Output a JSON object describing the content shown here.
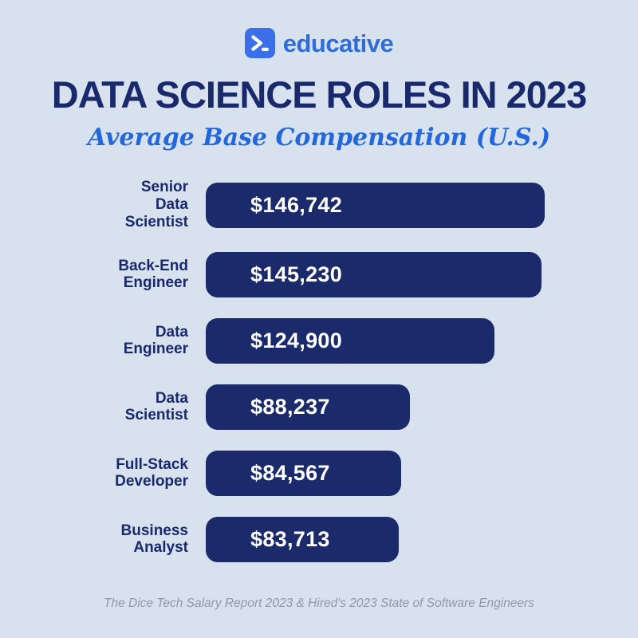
{
  "logo": {
    "icon": "terminal-prompt",
    "wordmark": "educative"
  },
  "header": {
    "title": "DATA SCIENCE ROLES IN 2023",
    "subtitle": "Average Base Compensation (U.S.)"
  },
  "footer": {
    "source": "The Dice Tech Salary Report 2023 & Hired's 2023 State of Software Engineers"
  },
  "colors": {
    "background": "#d8e2ee",
    "bar": "#1b2a6b",
    "title": "#19296b",
    "subtitle": "#2367dd",
    "logo_blue": "#2d6cd9",
    "footer_gray": "#8e99aa"
  },
  "chart_data": {
    "type": "bar",
    "orientation": "horizontal",
    "title": "DATA SCIENCE ROLES IN 2023",
    "subtitle": "Average Base Compensation (U.S.)",
    "source": "The Dice Tech Salary Report 2023 & Hired's 2023 State of Software Engineers",
    "categories": [
      "Senior Data Scientist",
      "Back-End Engineer",
      "Data Engineer",
      "Data Scientist",
      "Full-Stack Developer",
      "Business Analyst"
    ],
    "category_display": [
      "Senior\nData\nScientist",
      "Back-End\nEngineer",
      "Data\nEngineer",
      "Data\nScientist",
      "Full-Stack\nDeveloper",
      "Business\nAnalyst"
    ],
    "values": [
      146742,
      145230,
      124900,
      88237,
      84567,
      83713
    ],
    "value_labels": [
      "$146,742",
      "$145,230",
      "$124,900",
      "$88,237",
      "$84,567",
      "$83,713"
    ],
    "xlim": [
      0,
      146742
    ],
    "grid": false,
    "legend": false
  }
}
